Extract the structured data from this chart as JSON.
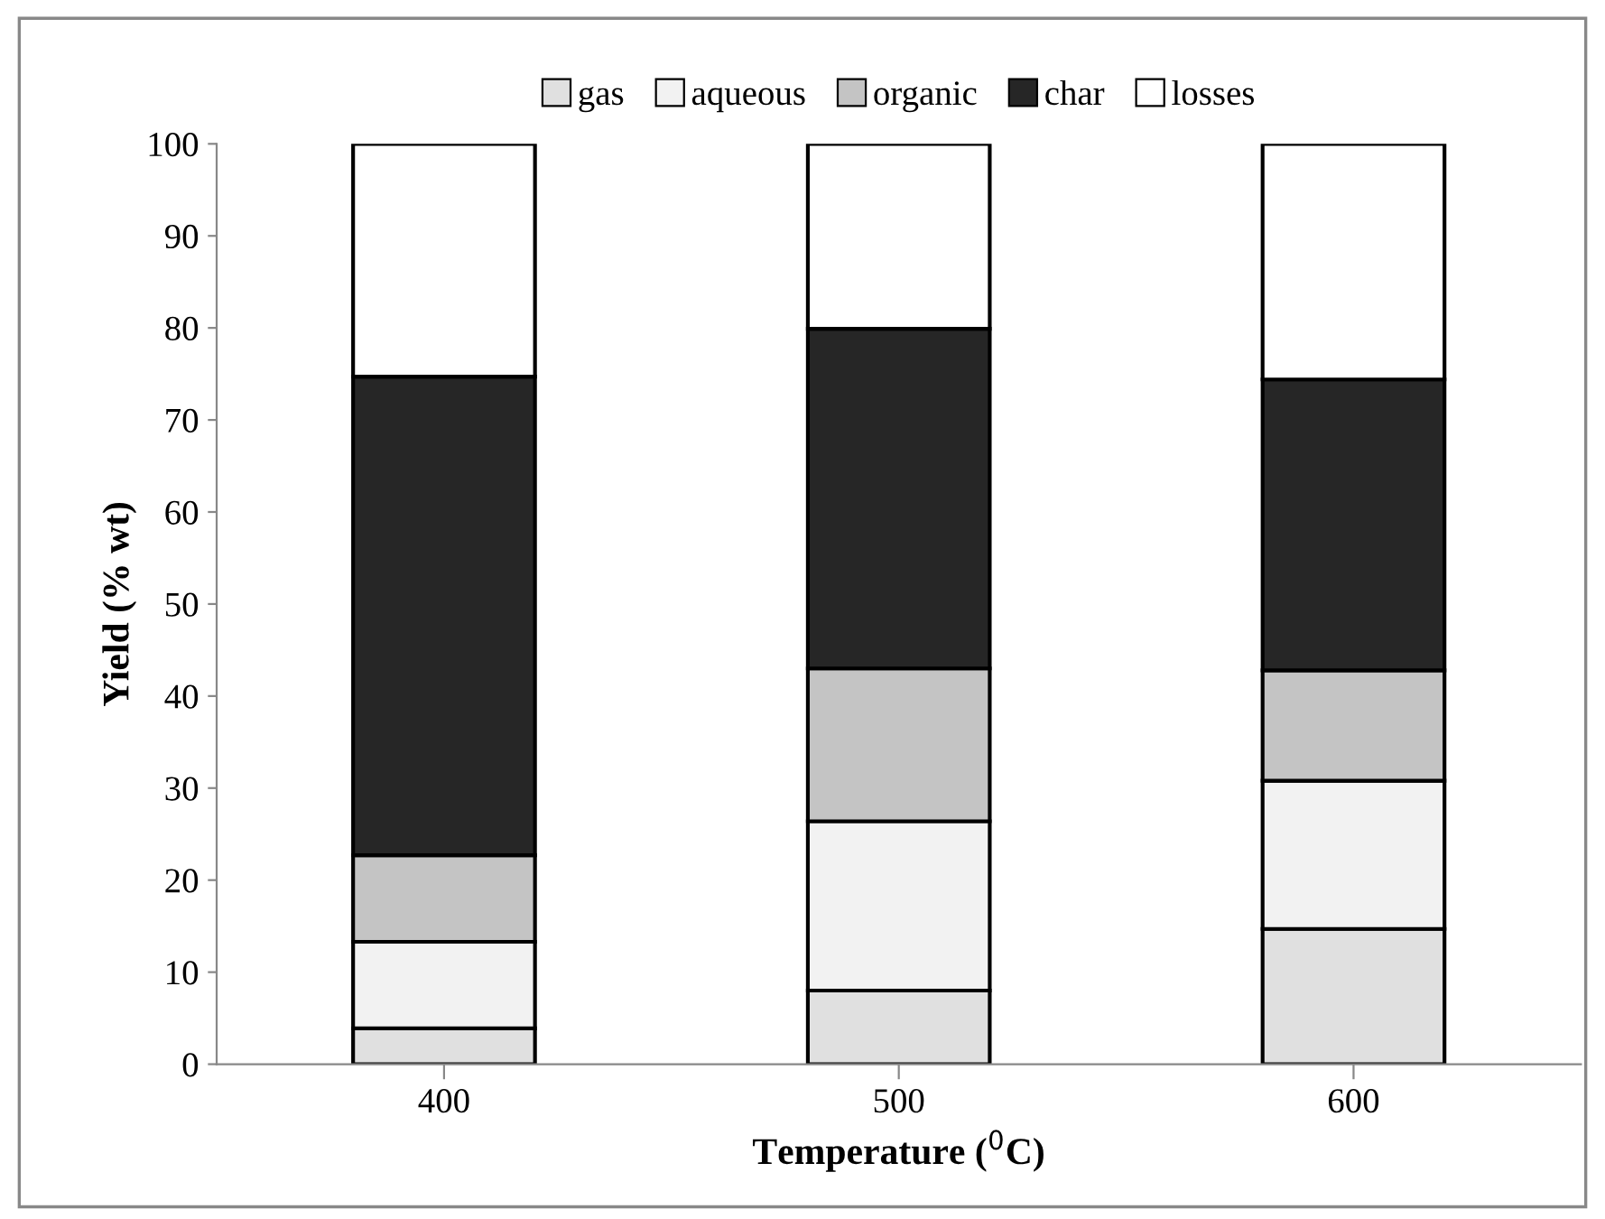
{
  "chart_data": {
    "type": "bar",
    "stacked": true,
    "xlabel": "Temperature ($^{0}$C)",
    "ylabel": "Yield (% wt)",
    "categories": [
      "400",
      "500",
      "600"
    ],
    "series": [
      {
        "name": "gas",
        "color": "#e0e0e0",
        "values": [
          3.9,
          8.0,
          14.7
        ]
      },
      {
        "name": "aqueous",
        "color": "#f2f2f2",
        "values": [
          9.4,
          18.4,
          16.1
        ]
      },
      {
        "name": "organic",
        "color": "#c4c4c4",
        "values": [
          9.4,
          16.6,
          12.0
        ]
      },
      {
        "name": "char",
        "color": "#262626",
        "values": [
          52.0,
          36.9,
          31.6
        ]
      },
      {
        "name": "losses",
        "color": "#ffffff",
        "values": [
          25.3,
          20.1,
          25.6
        ]
      }
    ],
    "ylim": [
      0,
      100
    ],
    "yticks": [
      0,
      10,
      20,
      30,
      40,
      50,
      60,
      70,
      80,
      90,
      100
    ],
    "grid": false,
    "legend": "top"
  }
}
